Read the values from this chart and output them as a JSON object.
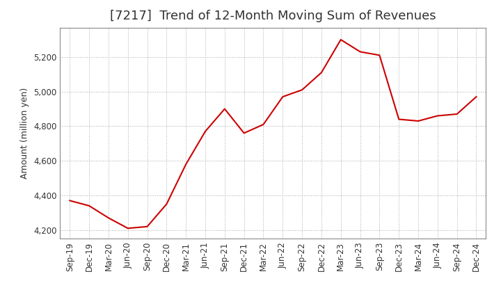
{
  "title": "[7217]  Trend of 12-Month Moving Sum of Revenues",
  "ylabel": "Amount (million yen)",
  "line_color": "#cc0000",
  "background_color": "#ffffff",
  "plot_bg_color": "#ffffff",
  "grid_color": "#aaaaaa",
  "title_color": "#333333",
  "axis_label_color": "#333333",
  "tick_label_color": "#333333",
  "x_labels": [
    "Sep-19",
    "Dec-19",
    "Mar-20",
    "Jun-20",
    "Sep-20",
    "Dec-20",
    "Mar-21",
    "Jun-21",
    "Sep-21",
    "Dec-21",
    "Mar-22",
    "Jun-22",
    "Sep-22",
    "Dec-22",
    "Mar-23",
    "Jun-23",
    "Sep-23",
    "Dec-23",
    "Mar-24",
    "Jun-24",
    "Sep-24",
    "Dec-24"
  ],
  "y_values": [
    4370,
    4340,
    4270,
    4210,
    4220,
    4350,
    4580,
    4770,
    4900,
    4760,
    4810,
    4970,
    5010,
    5110,
    5300,
    5230,
    5210,
    4840,
    4830,
    4860,
    4870,
    4970
  ],
  "ylim": [
    4150,
    5370
  ],
  "yticks": [
    4200,
    4400,
    4600,
    4800,
    5000,
    5200
  ],
  "title_fontsize": 13,
  "label_fontsize": 9,
  "tick_fontsize": 8.5
}
